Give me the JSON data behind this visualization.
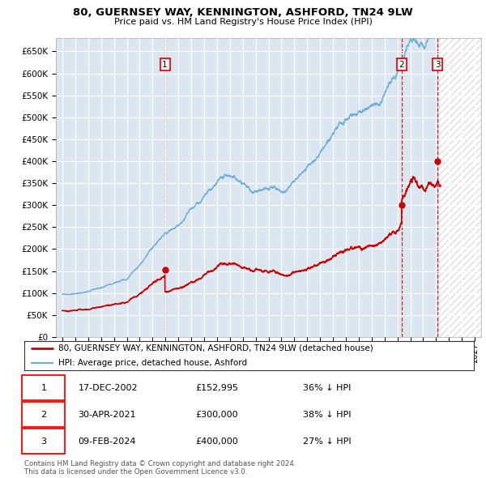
{
  "title": "80, GUERNSEY WAY, KENNINGTON, ASHFORD, TN24 9LW",
  "subtitle": "Price paid vs. HM Land Registry's House Price Index (HPI)",
  "ylim": [
    0,
    680000
  ],
  "yticks": [
    0,
    50000,
    100000,
    150000,
    200000,
    250000,
    300000,
    350000,
    400000,
    450000,
    500000,
    550000,
    600000,
    650000
  ],
  "xlim_start": 1994.5,
  "xlim_end": 2027.5,
  "bg_color": "#dce6f1",
  "hpi_color": "#6baed6",
  "price_color": "#cc0000",
  "transactions": [
    {
      "date_num": 2002.96,
      "price": 152995,
      "label": "1",
      "date_str": "17-DEC-2002",
      "pct": "36% ↓ HPI"
    },
    {
      "date_num": 2021.33,
      "price": 300000,
      "label": "2",
      "date_str": "30-APR-2021",
      "pct": "38% ↓ HPI"
    },
    {
      "date_num": 2024.11,
      "price": 400000,
      "label": "3",
      "date_str": "09-FEB-2024",
      "pct": "27% ↓ HPI"
    }
  ],
  "legend_entries": [
    "80, GUERNSEY WAY, KENNINGTON, ASHFORD, TN24 9LW (detached house)",
    "HPI: Average price, detached house, Ashford"
  ],
  "footer": "Contains HM Land Registry data © Crown copyright and database right 2024.\nThis data is licensed under the Open Government Licence v3.0.",
  "future_start": 2024.25
}
